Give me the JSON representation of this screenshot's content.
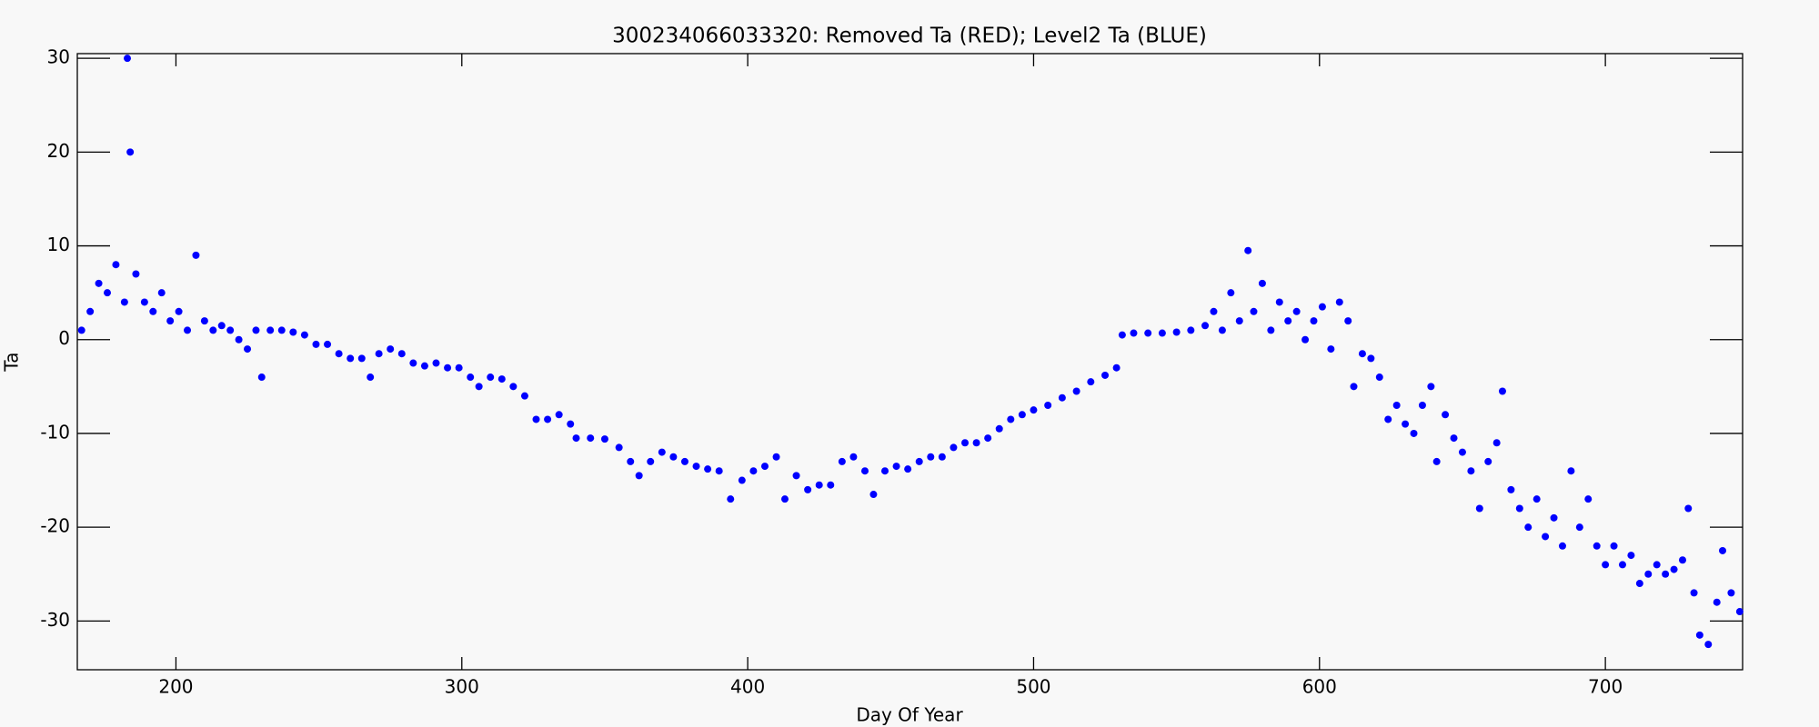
{
  "chart_data": {
    "type": "scatter",
    "title": "300234066033320: Removed Ta (RED); Level2 Ta (BLUE)",
    "x_label": "Day Of Year",
    "y_label": "Ta",
    "xlim": [
      165.5,
      748
    ],
    "ylim": [
      -35.2,
      30.5
    ],
    "xticks": [
      200,
      300,
      400,
      500,
      600,
      700
    ],
    "yticks": [
      -30,
      -20,
      -10,
      0,
      10,
      20,
      30
    ],
    "color": "#0000ff",
    "x": [
      167,
      170,
      173,
      176,
      179,
      182,
      183,
      184,
      186,
      189,
      192,
      195,
      198,
      201,
      204,
      207,
      210,
      213,
      216,
      219,
      222,
      225,
      228,
      230,
      233,
      237,
      241,
      245,
      249,
      253,
      257,
      261,
      265,
      268,
      271,
      275,
      279,
      283,
      287,
      291,
      295,
      299,
      303,
      306,
      310,
      314,
      318,
      322,
      326,
      330,
      334,
      338,
      340,
      345,
      350,
      355,
      359,
      362,
      366,
      370,
      374,
      378,
      382,
      386,
      390,
      394,
      398,
      402,
      406,
      410,
      413,
      417,
      421,
      425,
      429,
      433,
      437,
      441,
      444,
      448,
      452,
      456,
      460,
      464,
      468,
      472,
      476,
      480,
      484,
      488,
      492,
      496,
      500,
      505,
      510,
      515,
      520,
      525,
      529,
      531,
      535,
      540,
      545,
      550,
      555,
      560,
      563,
      566,
      569,
      572,
      575,
      577,
      580,
      583,
      586,
      589,
      592,
      595,
      598,
      601,
      604,
      607,
      610,
      612,
      615,
      618,
      621,
      624,
      627,
      630,
      633,
      636,
      639,
      641,
      644,
      647,
      650,
      653,
      656,
      659,
      662,
      664,
      667,
      670,
      673,
      676,
      679,
      682,
      685,
      688,
      691,
      694,
      697,
      700,
      703,
      706,
      709,
      712,
      715,
      718,
      721,
      724,
      727,
      729,
      731,
      733,
      736,
      739,
      741,
      744,
      747
    ],
    "values": [
      1,
      3,
      6,
      5,
      8,
      4,
      30,
      20,
      7,
      4,
      3,
      5,
      2,
      3,
      1,
      9,
      2,
      1,
      1.5,
      1,
      0,
      -1,
      1,
      -4,
      1,
      1,
      0.8,
      0.5,
      -0.5,
      -0.5,
      -1.5,
      -2,
      -2,
      -4,
      -1.5,
      -1,
      -1.5,
      -2.5,
      -2.8,
      -2.5,
      -3,
      -3,
      -4,
      -5,
      -4,
      -4.2,
      -5,
      -6,
      -8.5,
      -8.5,
      -8,
      -9,
      -10.5,
      -10.5,
      -10.6,
      -11.5,
      -13,
      -14.5,
      -13,
      -12,
      -12.5,
      -13,
      -13.5,
      -13.8,
      -14,
      -17,
      -15,
      -14,
      -13.5,
      -12.5,
      -17,
      -14.5,
      -16,
      -15.5,
      -15.5,
      -13,
      -12.5,
      -14,
      -16.5,
      -14,
      -13.5,
      -13.8,
      -13,
      -12.5,
      -12.5,
      -11.5,
      -11,
      -11,
      -10.5,
      -9.5,
      -8.5,
      -8,
      -7.5,
      -7,
      -6.2,
      -5.5,
      -4.5,
      -3.8,
      -3,
      0.5,
      0.7,
      0.7,
      0.7,
      0.8,
      1,
      1.5,
      3,
      1,
      5,
      2,
      9.5,
      3,
      6,
      1,
      4,
      2,
      3,
      0,
      2,
      3.5,
      -1,
      4,
      2,
      -5,
      -1.5,
      -2,
      -4,
      -8.5,
      -7,
      -9,
      -10,
      -7,
      -5,
      -13,
      -8,
      -10.5,
      -12,
      -14,
      -18,
      -13,
      -11,
      -5.5,
      -16,
      -18,
      -20,
      -17,
      -21,
      -19,
      -22,
      -14,
      -20,
      -17,
      -22,
      -24,
      -22,
      -24,
      -23,
      -26,
      -25,
      -24,
      -25,
      -24.5,
      -23.5,
      -18,
      -27,
      -31.5,
      -32.5,
      -28,
      -22.5,
      -27,
      -29
    ]
  }
}
